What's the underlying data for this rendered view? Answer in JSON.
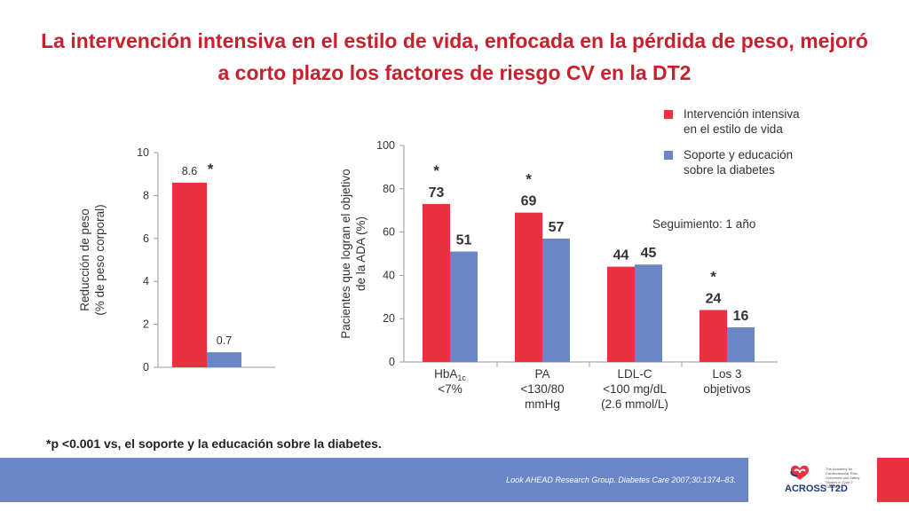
{
  "title": "La intervención intensiva en el estilo de vida, enfocada en la pérdida de peso, mejoró a corto plazo los factores de riesgo CV en la DT2",
  "legend": [
    {
      "label": "Intervención intensiva\nen el estilo de vida",
      "color": "#e8323f"
    },
    {
      "label": "Soporte y educación\nsobre la diabetes",
      "color": "#6b86c6"
    }
  ],
  "followup": "Seguimiento: 1 año",
  "footnote": "*p <0.001 vs, el soporte y la educación sobre la diabetes.",
  "citation": "Look AHEAD Research Group. Diabetes Care 2007;30:1374–83.",
  "logo": {
    "text": "ACROSS T2D",
    "subtext": "The Academy for Cardiovascular Risk, Outcomes and Safety Studies in Type 2 Diabetes"
  },
  "chart_data": [
    {
      "type": "bar",
      "ylabel_line1": "Reducción de peso",
      "ylabel_line2": "(% de peso corporal)",
      "ylim": [
        0,
        10
      ],
      "yticks": [
        "0",
        "2",
        "4",
        "6",
        "8",
        "10"
      ],
      "categories": [
        ""
      ],
      "series": [
        {
          "name": "Intervención intensiva en el estilo de vida",
          "values": [
            8.6
          ],
          "labels": [
            "8.6"
          ],
          "color": "#e8323f"
        },
        {
          "name": "Soporte y educación sobre la diabetes",
          "values": [
            0.7
          ],
          "labels": [
            "0.7"
          ],
          "color": "#6b86c6"
        }
      ],
      "significance": [
        "*"
      ]
    },
    {
      "type": "bar",
      "ylabel_line1": "Pacientes que logran el objetivo",
      "ylabel_line2": "de la ADA (%)",
      "ylim": [
        0,
        100
      ],
      "yticks": [
        "0",
        "20",
        "40",
        "60",
        "80",
        "100"
      ],
      "categories": [
        [
          "HbA1c",
          "<7%"
        ],
        [
          "PA",
          "<130/80",
          "mmHg"
        ],
        [
          "LDL-C",
          "<100 mg/dL",
          "(2.6 mmol/L)"
        ],
        [
          "Los 3",
          "objetivos"
        ]
      ],
      "series": [
        {
          "name": "Intervención intensiva en el estilo de vida",
          "values": [
            73,
            69,
            44,
            24
          ],
          "labels": [
            "73",
            "69",
            "44",
            "24"
          ],
          "color": "#e8323f"
        },
        {
          "name": "Soporte y educación sobre la diabetes",
          "values": [
            51,
            57,
            45,
            16
          ],
          "labels": [
            "51",
            "57",
            "45",
            "16"
          ],
          "color": "#6b86c6"
        }
      ],
      "significance": [
        "*",
        "*",
        "",
        "*"
      ]
    }
  ]
}
